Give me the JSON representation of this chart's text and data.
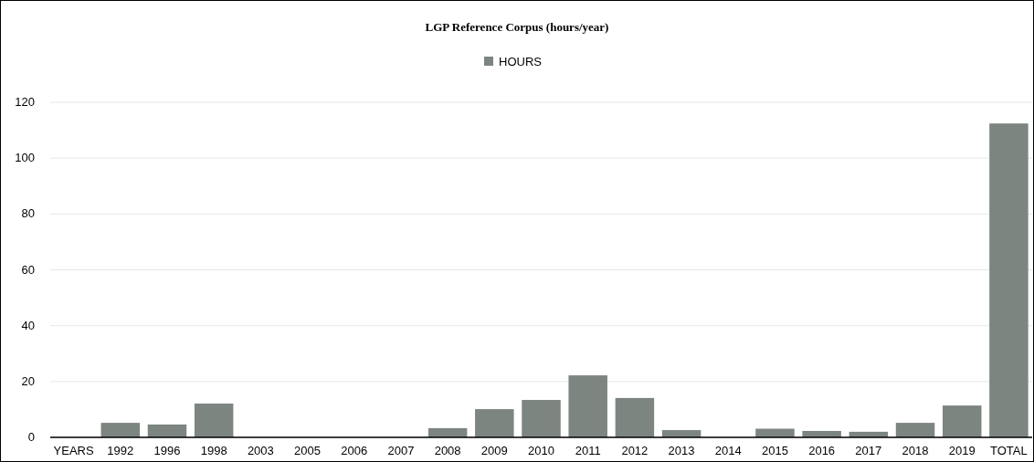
{
  "chart_data": {
    "type": "bar",
    "title": "LGP Reference Corpus (hours/year)",
    "categories": [
      "YEARS",
      "1992",
      "1996",
      "1998",
      "2003",
      "2005",
      "2006",
      "2007",
      "2008",
      "2009",
      "2010",
      "2011",
      "2012",
      "2013",
      "2014",
      "2015",
      "2016",
      "2017",
      "2018",
      "2019",
      "TOTAL"
    ],
    "series": [
      {
        "name": "HOURS",
        "color": "#7d8580",
        "values": [
          null,
          5.2,
          4.6,
          12.1,
          0,
          0,
          0,
          0,
          3.3,
          10.1,
          13.4,
          22.2,
          14.1,
          2.6,
          0,
          3.1,
          2.3,
          2.0,
          5.2,
          11.4,
          112.4
        ]
      }
    ],
    "ylim": [
      0,
      120
    ],
    "yticks": [
      0,
      20,
      40,
      60,
      80,
      100,
      120
    ],
    "grid": "y",
    "legend": "top"
  }
}
